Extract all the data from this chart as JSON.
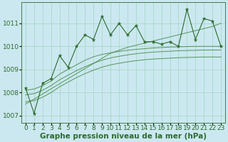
{
  "xlabel": "Graphe pression niveau de la mer (hPa)",
  "bg_color": "#cbe8f0",
  "line_color": "#2d6a2d",
  "line_color_light": "#4a8a4a",
  "x": [
    0,
    1,
    2,
    3,
    4,
    5,
    6,
    7,
    8,
    9,
    10,
    11,
    12,
    13,
    14,
    15,
    16,
    17,
    18,
    19,
    20,
    21,
    22,
    23
  ],
  "y_main": [
    1008.2,
    1007.1,
    1008.4,
    1008.6,
    1009.6,
    1009.1,
    1010.0,
    1010.5,
    1010.3,
    1011.3,
    1010.5,
    1011.0,
    1010.5,
    1010.9,
    1010.2,
    1010.2,
    1010.1,
    1010.2,
    1010.0,
    1011.6,
    1010.3,
    1011.2,
    1011.1,
    1010.0
  ],
  "y_linear": [
    1007.5,
    1007.72,
    1007.94,
    1008.16,
    1008.38,
    1008.6,
    1008.82,
    1009.04,
    1009.26,
    1009.48,
    1009.7,
    1009.83,
    1009.96,
    1010.05,
    1010.14,
    1010.23,
    1010.32,
    1010.41,
    1010.5,
    1010.59,
    1010.68,
    1010.77,
    1010.86,
    1011.0
  ],
  "y_smooth1": [
    1008.1,
    1008.15,
    1008.3,
    1008.5,
    1008.8,
    1009.0,
    1009.2,
    1009.4,
    1009.55,
    1009.65,
    1009.72,
    1009.78,
    1009.83,
    1009.87,
    1009.9,
    1009.93,
    1009.95,
    1009.97,
    1009.98,
    1009.99,
    1010.0,
    1010.0,
    1010.0,
    1010.0
  ],
  "y_smooth2": [
    1007.9,
    1007.95,
    1008.1,
    1008.3,
    1008.55,
    1008.75,
    1008.95,
    1009.12,
    1009.27,
    1009.4,
    1009.5,
    1009.57,
    1009.63,
    1009.68,
    1009.72,
    1009.75,
    1009.77,
    1009.79,
    1009.81,
    1009.82,
    1009.83,
    1009.84,
    1009.84,
    1009.84
  ],
  "y_smooth3": [
    1007.6,
    1007.65,
    1007.8,
    1008.0,
    1008.25,
    1008.45,
    1008.65,
    1008.82,
    1008.97,
    1009.1,
    1009.2,
    1009.27,
    1009.33,
    1009.38,
    1009.42,
    1009.45,
    1009.47,
    1009.49,
    1009.51,
    1009.52,
    1009.53,
    1009.54,
    1009.54,
    1009.54
  ],
  "yticks": [
    1007,
    1008,
    1009,
    1010,
    1011
  ],
  "ylim": [
    1006.7,
    1011.9
  ],
  "xlim": [
    -0.5,
    23.5
  ],
  "xtick_labels": [
    "0",
    "1",
    "2",
    "3",
    "4",
    "5",
    "6",
    "7",
    "8",
    "9",
    "10",
    "11",
    "12",
    "13",
    "14",
    "15",
    "16",
    "17",
    "18",
    "19",
    "20",
    "21",
    "22",
    "23"
  ],
  "xlabel_fontsize": 7.5,
  "tick_fontsize": 6.5,
  "grid_color": "#a8d8c8"
}
